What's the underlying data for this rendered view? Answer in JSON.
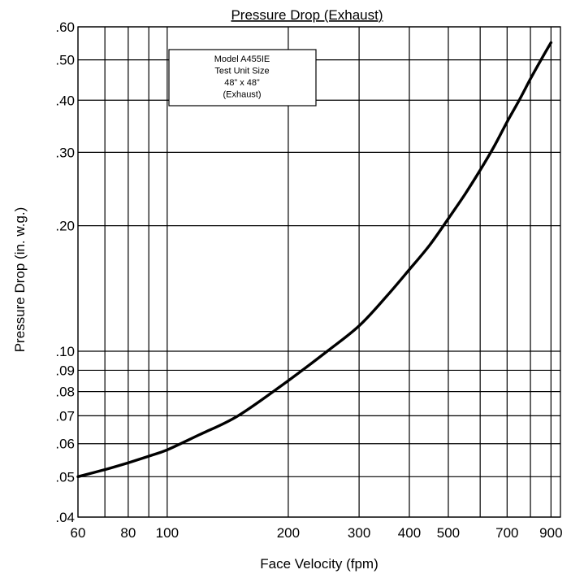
{
  "chart_data": {
    "type": "line",
    "title": "Pressure Drop (Exhaust)",
    "xlabel": "Face Velocity (fpm)",
    "ylabel": "Pressure Drop (in. w.g.)",
    "x_scale": "log",
    "y_scale": "log",
    "xlim": [
      60,
      950
    ],
    "ylim": [
      0.04,
      0.6
    ],
    "grid": true,
    "x_gridlines": [
      60,
      70,
      80,
      90,
      100,
      200,
      300,
      400,
      500,
      600,
      700,
      800,
      900
    ],
    "x_tick_labels": [
      {
        "value": 60,
        "label": "60"
      },
      {
        "value": 80,
        "label": "80"
      },
      {
        "value": 100,
        "label": "100"
      },
      {
        "value": 200,
        "label": "200"
      },
      {
        "value": 300,
        "label": "300"
      },
      {
        "value": 400,
        "label": "400"
      },
      {
        "value": 500,
        "label": "500"
      },
      {
        "value": 700,
        "label": "700"
      },
      {
        "value": 900,
        "label": "900"
      }
    ],
    "y_gridlines": [
      0.04,
      0.05,
      0.06,
      0.07,
      0.08,
      0.09,
      0.1,
      0.2,
      0.3,
      0.4,
      0.5,
      0.6
    ],
    "y_tick_labels": [
      {
        "value": 0.04,
        "label": ".04"
      },
      {
        "value": 0.05,
        "label": ".05"
      },
      {
        "value": 0.06,
        "label": ".06"
      },
      {
        "value": 0.07,
        "label": ".07"
      },
      {
        "value": 0.08,
        "label": ".08"
      },
      {
        "value": 0.09,
        "label": ".09"
      },
      {
        "value": 0.1,
        "label": ".10"
      },
      {
        "value": 0.2,
        "label": ".20"
      },
      {
        "value": 0.3,
        "label": ".30"
      },
      {
        "value": 0.4,
        "label": ".40"
      },
      {
        "value": 0.5,
        "label": ".50"
      },
      {
        "value": 0.6,
        "label": ".60"
      }
    ],
    "series": [
      {
        "x": [
          60,
          70,
          80,
          90,
          100,
          120,
          150,
          200,
          250,
          300,
          350,
          400,
          450,
          500,
          550,
          600,
          650,
          700,
          750,
          800,
          850,
          900
        ],
        "y": [
          0.05,
          0.052,
          0.054,
          0.056,
          0.058,
          0.063,
          0.07,
          0.085,
          0.1,
          0.115,
          0.135,
          0.157,
          0.18,
          0.208,
          0.238,
          0.272,
          0.31,
          0.355,
          0.4,
          0.45,
          0.5,
          0.55
        ]
      }
    ],
    "annotation": {
      "lines": [
        "Model A455IE",
        "Test Unit Size",
        "48” x 48”",
        "(Exhaust)"
      ]
    },
    "colors": {
      "line": "#000000",
      "grid": "#000000"
    }
  }
}
